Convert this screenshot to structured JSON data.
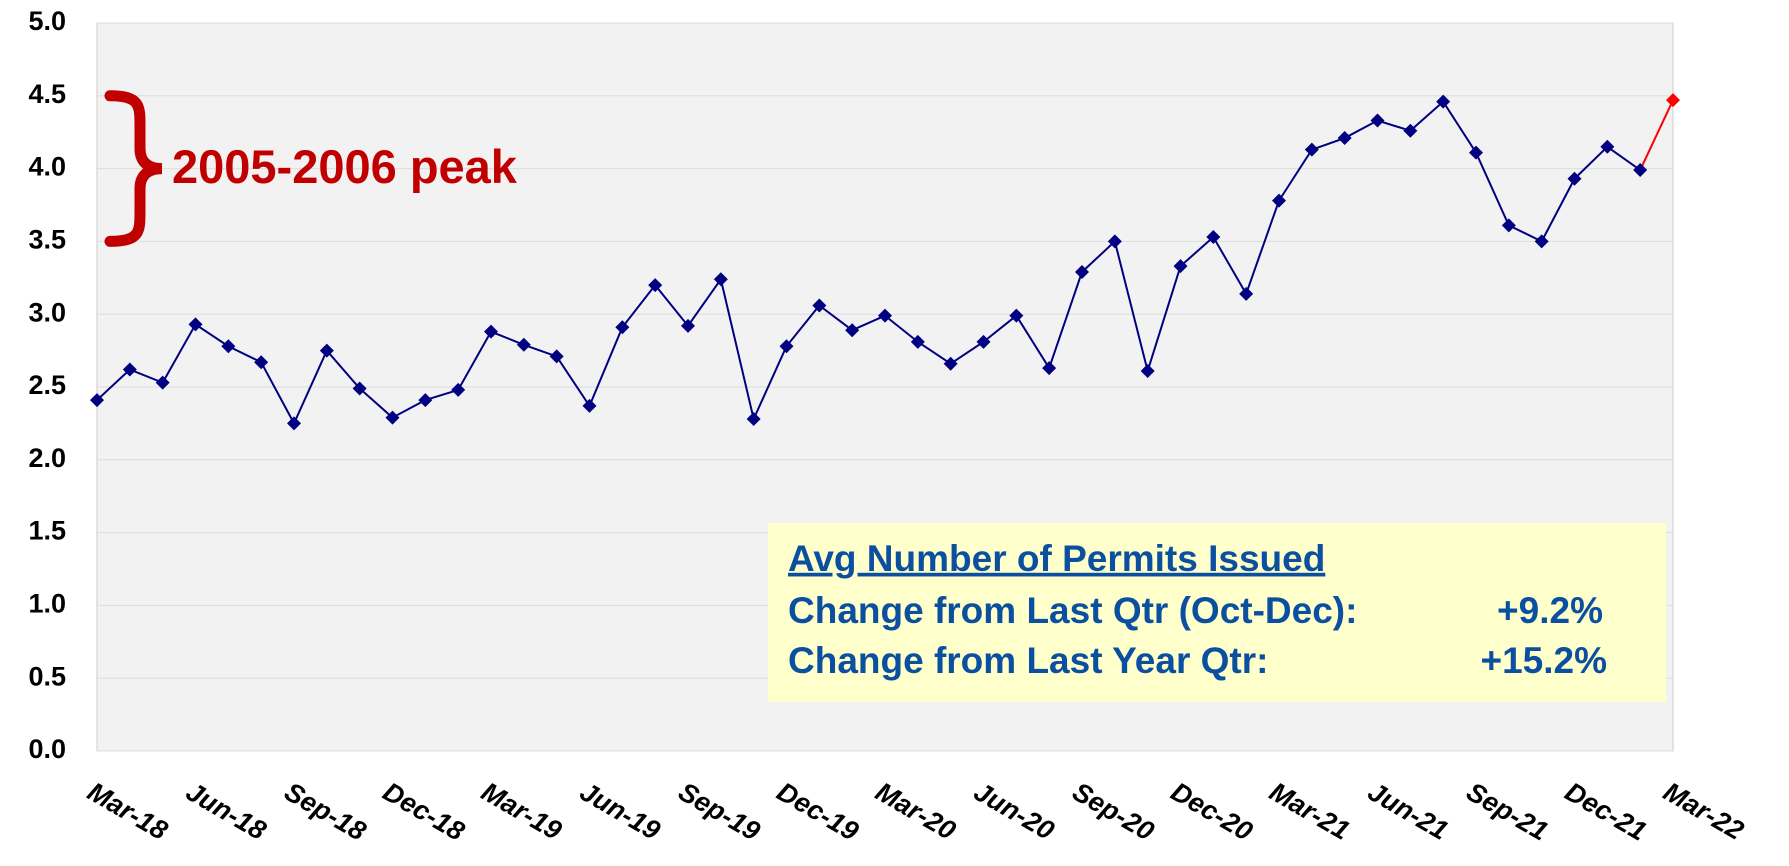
{
  "chart_data": {
    "type": "line",
    "categories": [
      "Mar-18",
      null,
      null,
      "Jun-18",
      null,
      null,
      "Sep-18",
      null,
      null,
      "Dec-18",
      null,
      null,
      "Mar-19",
      null,
      null,
      "Jun-19",
      null,
      null,
      "Sep-19",
      null,
      null,
      "Dec-19",
      null,
      null,
      "Mar-20",
      null,
      null,
      "Jun-20",
      null,
      null,
      "Sep-20",
      null,
      null,
      "Dec-20",
      null,
      null,
      "Mar-21",
      null,
      null,
      "Jun-21",
      null,
      null,
      "Sep-21",
      null,
      null,
      "Dec-21",
      null,
      null,
      "Mar-22"
    ],
    "series": [
      {
        "color": "#000080",
        "last_color": "#ff0000",
        "values": [
          2.41,
          2.62,
          2.53,
          2.93,
          2.78,
          2.67,
          2.25,
          2.75,
          2.49,
          2.29,
          2.41,
          2.48,
          2.88,
          2.79,
          2.71,
          2.37,
          2.91,
          3.2,
          2.92,
          3.24,
          2.28,
          2.78,
          3.06,
          2.89,
          2.99,
          2.81,
          2.66,
          2.81,
          2.99,
          2.63,
          3.29,
          3.5,
          2.61,
          3.33,
          3.53,
          3.14,
          3.78,
          4.13,
          4.21,
          4.33,
          4.26,
          4.46,
          4.11,
          3.61,
          3.5,
          3.93,
          4.15,
          3.99,
          4.47
        ]
      }
    ],
    "ylim": [
      0,
      5
    ],
    "yticks": [
      {
        "value": 0,
        "label": "0.0"
      },
      0.5,
      {
        "value": 1,
        "label": "1.0"
      },
      1.5,
      {
        "value": 2,
        "label": "2.0"
      },
      2.5,
      {
        "value": 3,
        "label": "3.0"
      },
      3.5,
      {
        "value": 4,
        "label": "4.0"
      },
      4.5,
      {
        "value": 5,
        "label": "5.0"
      }
    ],
    "grid": true,
    "annotation": {
      "text": "2005-2006 peak",
      "range": [
        3.5,
        4.5
      ],
      "color": "#c00000"
    },
    "info_box": {
      "title": "Avg Number of Permits Issued",
      "rows": [
        {
          "label": "Change from Last Qtr (Oct-Dec):",
          "value": "+9.2%"
        },
        {
          "label": "Change from Last Year Qtr:",
          "value": "+15.2%"
        }
      ]
    }
  }
}
